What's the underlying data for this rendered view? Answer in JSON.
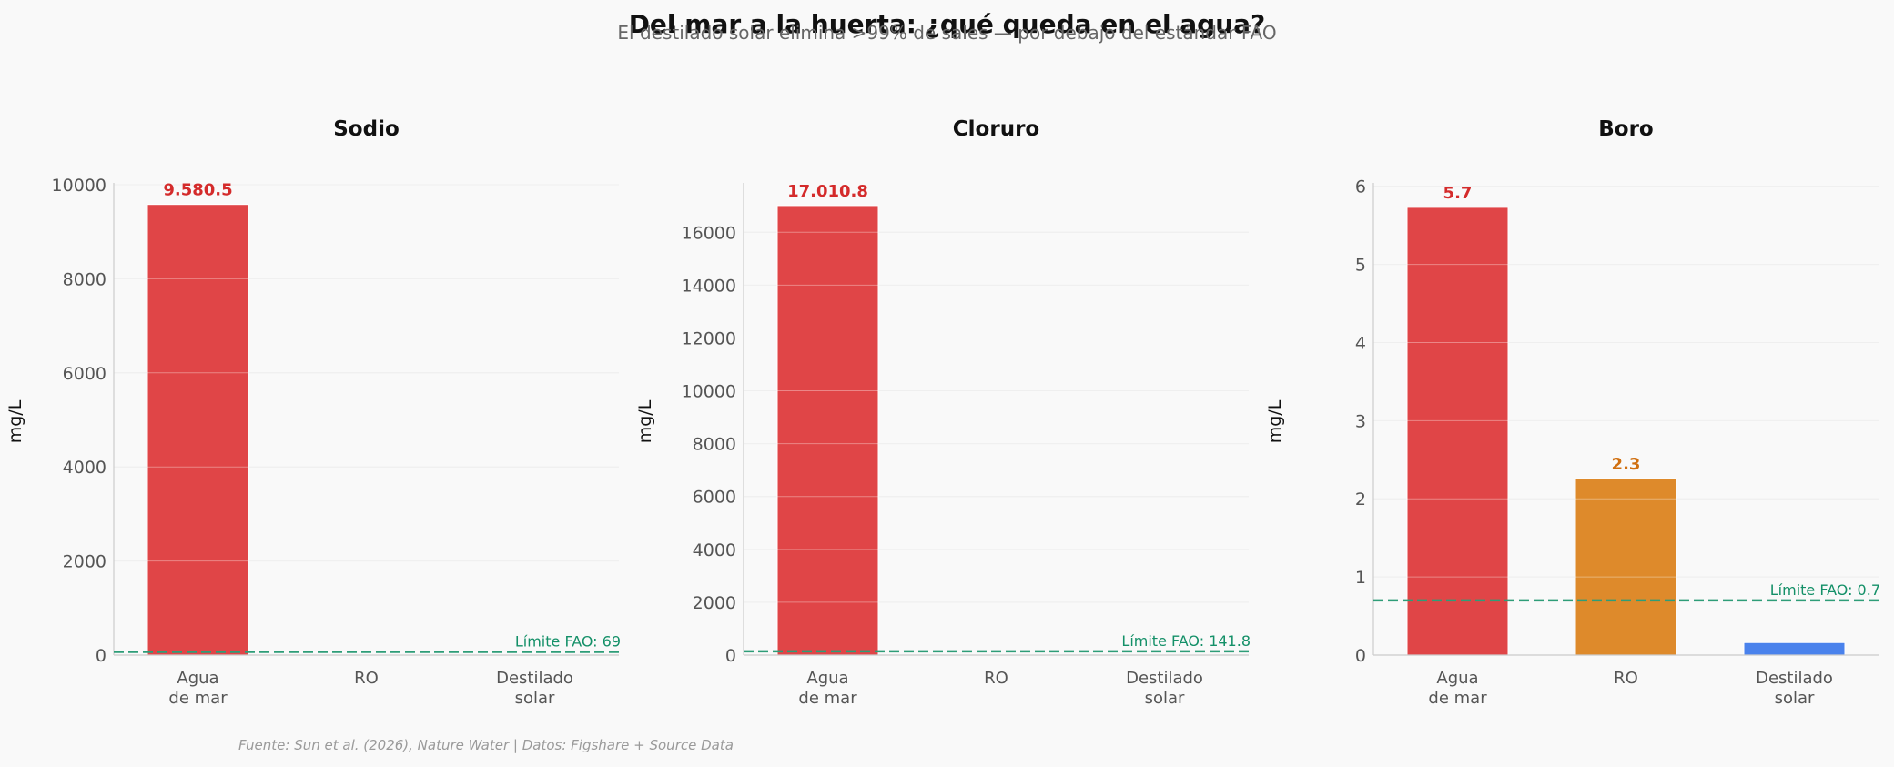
{
  "suptitle": "Del mar a la huerta: ¿qué queda en el agua?",
  "subtitle": "El destilado solar elimina >99% de sales — por debajo del estándar FAO",
  "source": "Fuente: Sun et al. (2026), Nature Water | Datos: Figshare + Source Data",
  "chart_data": [
    {
      "type": "bar",
      "title": "Sodio",
      "ylabel": "mg/L",
      "categories": [
        "Agua de mar",
        "RO",
        "Destilado solar"
      ],
      "category_lines": [
        [
          "Agua",
          "de mar"
        ],
        [
          "RO"
        ],
        [
          "Destilado",
          "solar"
        ]
      ],
      "values": [
        9580.5,
        6.0,
        4.0
      ],
      "value_labels": [
        "9.580.5",
        "",
        ""
      ],
      "colors": [
        "#e04547",
        "#de8a2b",
        "#4a82ec"
      ],
      "label_colors": [
        "#d42b2b",
        "#d06f10",
        "#2f63d6"
      ],
      "ylim": [
        0,
        10000
      ],
      "yticks": [
        0,
        2000,
        4000,
        6000,
        8000,
        10000
      ],
      "threshold": 69,
      "threshold_label": "Límite FAO: 69"
    },
    {
      "type": "bar",
      "title": "Cloruro",
      "ylabel": "mg/L",
      "categories": [
        "Agua de mar",
        "RO",
        "Destilado solar"
      ],
      "category_lines": [
        [
          "Agua",
          "de mar"
        ],
        [
          "RO"
        ],
        [
          "Destilado",
          "solar"
        ]
      ],
      "values": [
        17010.8,
        8.0,
        5.0
      ],
      "value_labels": [
        "17.010.8",
        "",
        ""
      ],
      "colors": [
        "#e04547",
        "#de8a2b",
        "#4a82ec"
      ],
      "label_colors": [
        "#d42b2b",
        "#d06f10",
        "#2f63d6"
      ],
      "ylim": [
        0,
        17800
      ],
      "yticks": [
        0,
        2000,
        4000,
        6000,
        8000,
        10000,
        12000,
        14000,
        16000
      ],
      "threshold": 141.8,
      "threshold_label": "Límite FAO: 141.8"
    },
    {
      "type": "bar",
      "title": "Boro",
      "ylabel": "mg/L",
      "categories": [
        "Agua de mar",
        "RO",
        "Destilado solar"
      ],
      "category_lines": [
        [
          "Agua",
          "de mar"
        ],
        [
          "RO"
        ],
        [
          "Destilado",
          "solar"
        ]
      ],
      "values": [
        5.73,
        2.26,
        0.16
      ],
      "value_labels": [
        "5.7",
        "2.3",
        ""
      ],
      "colors": [
        "#e04547",
        "#de8a2b",
        "#4a82ec"
      ],
      "label_colors": [
        "#d42b2b",
        "#d06f10",
        "#2f63d6"
      ],
      "ylim": [
        0,
        6.02
      ],
      "yticks": [
        0,
        1,
        2,
        3,
        4,
        5,
        6
      ],
      "threshold": 0.7,
      "threshold_label": "Límite FAO: 0.7"
    }
  ]
}
